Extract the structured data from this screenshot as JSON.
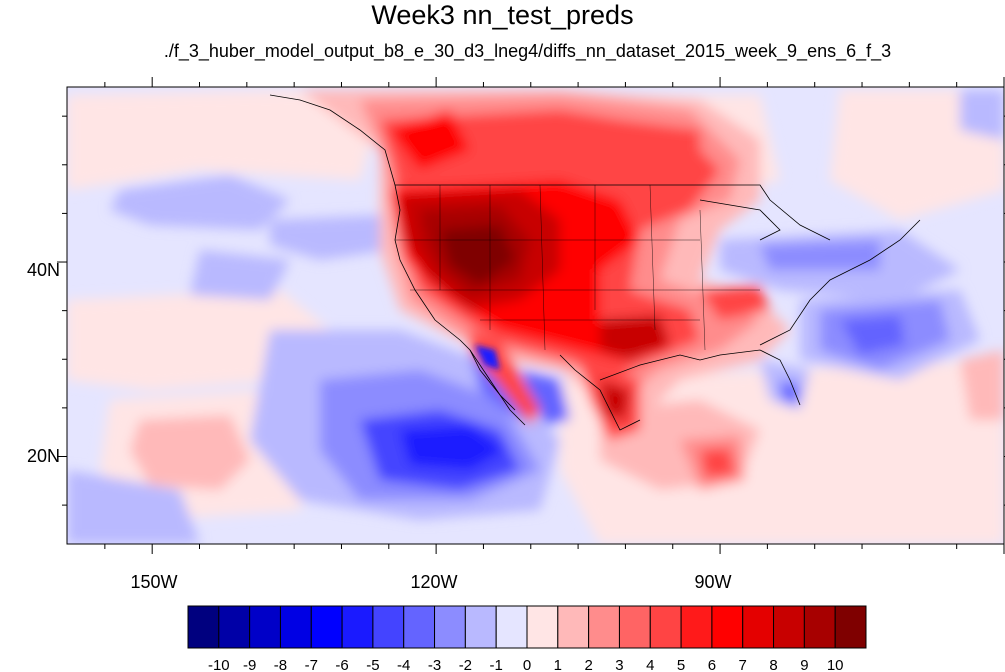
{
  "title": "Week3 nn_test_preds",
  "subtitle": "./f_3_huber_model_output_b8_e_30_d3_lneg4/diffs_nn_dataset_2015_week_9_ens_6_f_3",
  "map": {
    "lat_labels": [
      "40N",
      "20N"
    ],
    "lon_labels": [
      "150W",
      "120W",
      "90W"
    ],
    "lat_range": [
      11,
      58
    ],
    "lon_range": [
      -159,
      -60
    ]
  },
  "colorbar": {
    "labels": [
      "-10",
      "-9",
      "-8",
      "-7",
      "-6",
      "-5",
      "-4",
      "-3",
      "-2",
      "-1",
      "0",
      "1",
      "2",
      "3",
      "4",
      "5",
      "6",
      "7",
      "8",
      "9",
      "10"
    ],
    "colors": [
      "#00007f",
      "#0000a7",
      "#0000c8",
      "#0000e4",
      "#0000ff",
      "#1a1aff",
      "#4444ff",
      "#6464ff",
      "#8c8cff",
      "#b9b9ff",
      "#e5e5ff",
      "#ffe5e5",
      "#ffb9b9",
      "#ff8c8c",
      "#ff6464",
      "#ff4444",
      "#ff1a1a",
      "#ff0000",
      "#e40000",
      "#c80000",
      "#a70000",
      "#7f0000"
    ]
  }
}
